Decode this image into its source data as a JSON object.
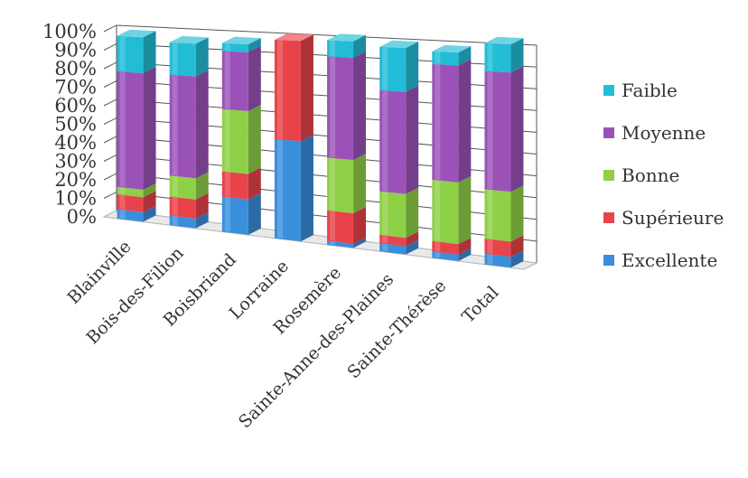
{
  "chart_data": {
    "type": "bar",
    "stacked": true,
    "title": "",
    "xlabel": "",
    "ylabel": "",
    "ylim": [
      0,
      100
    ],
    "yticks": [
      "0%",
      "10%",
      "20%",
      "30%",
      "40%",
      "50%",
      "60%",
      "70%",
      "80%",
      "90%",
      "100%"
    ],
    "grid": true,
    "legend_position": "right",
    "categories": [
      "Blainville",
      "Bois-des-Filion",
      "Boisbriand",
      "Lorraine",
      "Rosemère",
      "Sainte-Anne-des-Plaines",
      "Sainte-Thérèse",
      "Total"
    ],
    "series": [
      {
        "name": "Excellente",
        "color": "#3a8fdc",
        "values": [
          5,
          5,
          18,
          50,
          2,
          4,
          3,
          5
        ]
      },
      {
        "name": "Supérieure",
        "color": "#e8434b",
        "values": [
          8,
          10,
          13,
          50,
          15,
          4,
          5,
          7
        ]
      },
      {
        "name": "Bonne",
        "color": "#8ed046",
        "values": [
          4,
          11,
          32,
          0,
          26,
          21,
          29,
          23
        ]
      },
      {
        "name": "Moyenne",
        "color": "#9b52b8",
        "values": [
          62,
          53,
          30,
          0,
          50,
          49,
          55,
          55
        ]
      },
      {
        "name": "Faible",
        "color": "#22bcd6",
        "values": [
          19,
          17,
          4,
          0,
          8,
          21,
          6,
          13
        ]
      }
    ],
    "legend_order": [
      "Faible",
      "Moyenne",
      "Bonne",
      "Supérieure",
      "Excellente"
    ]
  }
}
